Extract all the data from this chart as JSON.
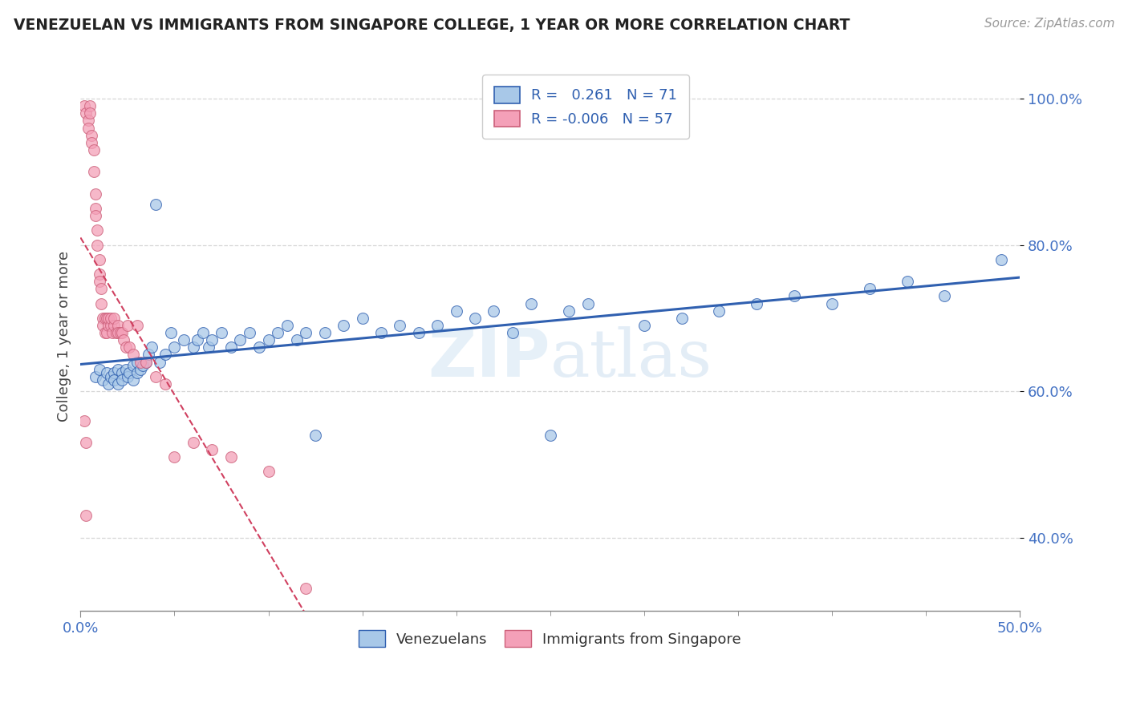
{
  "title": "VENEZUELAN VS IMMIGRANTS FROM SINGAPORE COLLEGE, 1 YEAR OR MORE CORRELATION CHART",
  "source_text": "Source: ZipAtlas.com",
  "ylabel": "College, 1 year or more",
  "xlim": [
    0.0,
    0.5
  ],
  "ylim": [
    0.3,
    1.05
  ],
  "ytick_values": [
    0.4,
    0.6,
    0.8,
    1.0
  ],
  "xtick_values": [
    0.0,
    0.5
  ],
  "legend_label1": "Venezuelans",
  "legend_label2": "Immigrants from Singapore",
  "R1": 0.261,
  "N1": 71,
  "R2": -0.006,
  "N2": 57,
  "blue_color": "#a8c8e8",
  "pink_color": "#f4a0b8",
  "blue_line_color": "#3060b0",
  "pink_line_color": "#d04060",
  "background_color": "#ffffff",
  "grid_color": "#cccccc",
  "blue_x": [
    0.008,
    0.01,
    0.012,
    0.014,
    0.015,
    0.016,
    0.018,
    0.018,
    0.02,
    0.02,
    0.022,
    0.022,
    0.024,
    0.025,
    0.026,
    0.028,
    0.028,
    0.03,
    0.03,
    0.032,
    0.033,
    0.035,
    0.036,
    0.038,
    0.04,
    0.042,
    0.045,
    0.048,
    0.05,
    0.055,
    0.06,
    0.062,
    0.065,
    0.068,
    0.07,
    0.075,
    0.08,
    0.085,
    0.09,
    0.095,
    0.1,
    0.105,
    0.11,
    0.115,
    0.12,
    0.125,
    0.13,
    0.14,
    0.15,
    0.16,
    0.17,
    0.18,
    0.19,
    0.2,
    0.21,
    0.22,
    0.23,
    0.24,
    0.25,
    0.26,
    0.27,
    0.3,
    0.32,
    0.34,
    0.36,
    0.38,
    0.4,
    0.42,
    0.44,
    0.46,
    0.49
  ],
  "blue_y": [
    0.62,
    0.63,
    0.615,
    0.625,
    0.61,
    0.62,
    0.625,
    0.615,
    0.63,
    0.61,
    0.625,
    0.615,
    0.63,
    0.62,
    0.625,
    0.635,
    0.615,
    0.625,
    0.64,
    0.63,
    0.635,
    0.64,
    0.65,
    0.66,
    0.855,
    0.64,
    0.65,
    0.68,
    0.66,
    0.67,
    0.66,
    0.67,
    0.68,
    0.66,
    0.67,
    0.68,
    0.66,
    0.67,
    0.68,
    0.66,
    0.67,
    0.68,
    0.69,
    0.67,
    0.68,
    0.54,
    0.68,
    0.69,
    0.7,
    0.68,
    0.69,
    0.68,
    0.69,
    0.71,
    0.7,
    0.71,
    0.68,
    0.72,
    0.54,
    0.71,
    0.72,
    0.69,
    0.7,
    0.71,
    0.72,
    0.73,
    0.72,
    0.74,
    0.75,
    0.73,
    0.78
  ],
  "pink_x": [
    0.002,
    0.003,
    0.004,
    0.004,
    0.005,
    0.005,
    0.006,
    0.006,
    0.007,
    0.007,
    0.008,
    0.008,
    0.008,
    0.009,
    0.009,
    0.01,
    0.01,
    0.01,
    0.011,
    0.011,
    0.012,
    0.012,
    0.013,
    0.013,
    0.014,
    0.014,
    0.015,
    0.015,
    0.016,
    0.016,
    0.017,
    0.018,
    0.018,
    0.019,
    0.02,
    0.02,
    0.021,
    0.022,
    0.023,
    0.024,
    0.025,
    0.026,
    0.028,
    0.03,
    0.032,
    0.035,
    0.04,
    0.045,
    0.05,
    0.06,
    0.07,
    0.08,
    0.1,
    0.002,
    0.003,
    0.003,
    0.12
  ],
  "pink_y": [
    0.99,
    0.98,
    0.97,
    0.96,
    0.99,
    0.98,
    0.95,
    0.94,
    0.93,
    0.9,
    0.87,
    0.85,
    0.84,
    0.82,
    0.8,
    0.78,
    0.76,
    0.75,
    0.74,
    0.72,
    0.7,
    0.69,
    0.68,
    0.7,
    0.68,
    0.7,
    0.69,
    0.7,
    0.69,
    0.7,
    0.68,
    0.69,
    0.7,
    0.68,
    0.69,
    0.68,
    0.68,
    0.68,
    0.67,
    0.66,
    0.69,
    0.66,
    0.65,
    0.69,
    0.64,
    0.64,
    0.62,
    0.61,
    0.51,
    0.53,
    0.52,
    0.51,
    0.49,
    0.56,
    0.53,
    0.43,
    0.33
  ]
}
